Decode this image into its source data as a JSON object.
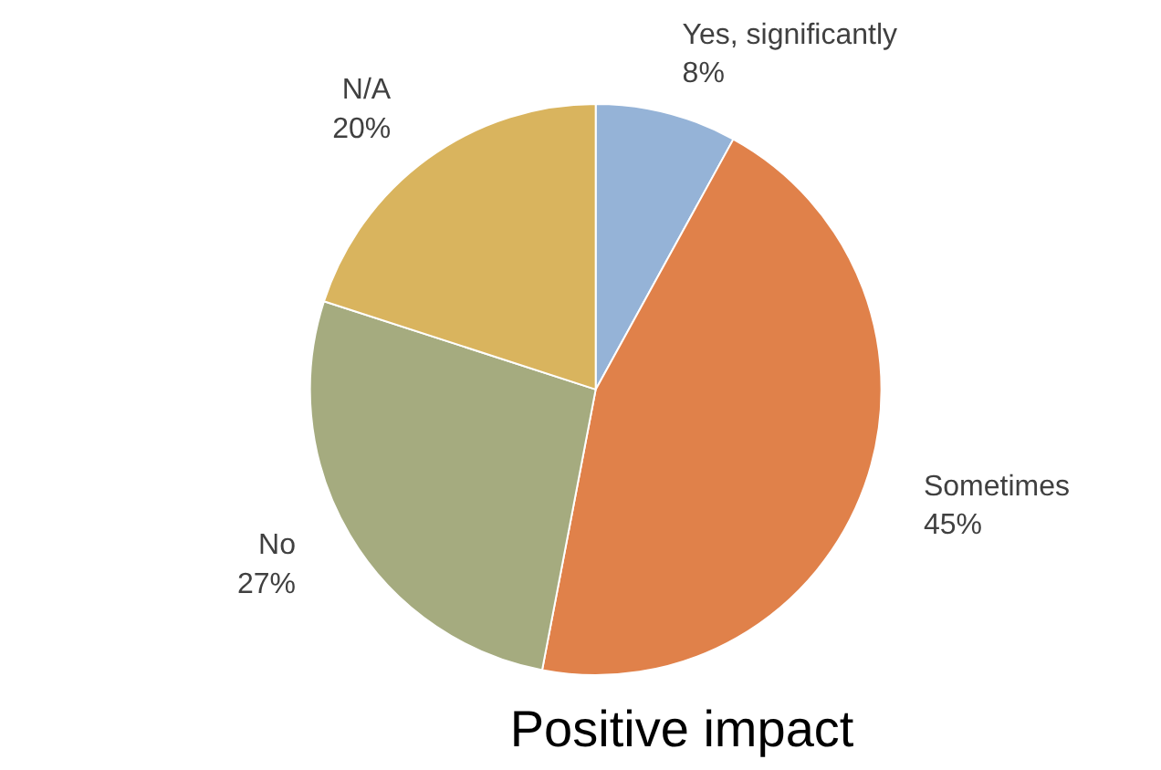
{
  "chart_data": {
    "type": "pie",
    "categories": [
      "Yes, significantly",
      "Sometimes",
      "No",
      "N/A"
    ],
    "values": [
      8,
      45,
      27,
      20
    ],
    "value_labels": [
      "8%",
      "45%",
      "27%",
      "20%"
    ],
    "colors": [
      "#95b3d7",
      "#e0814a",
      "#a5ab7f",
      "#d9b45e"
    ],
    "annotations": [
      "Positive impact"
    ],
    "legend": false
  }
}
